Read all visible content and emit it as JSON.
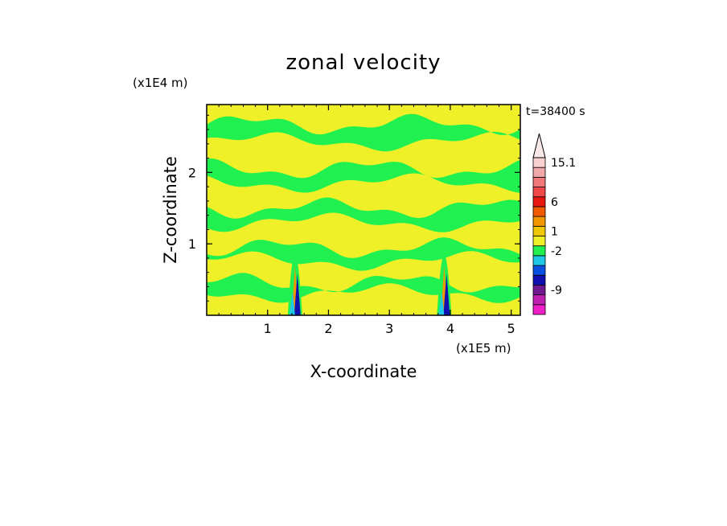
{
  "chart_data": {
    "type": "heatmap",
    "title": "zonal velocity",
    "xlabel": "X-coordinate",
    "ylabel": "Z-coordinate",
    "x_unit": "(x1E5 m)",
    "y_unit": "(x1E4 m)",
    "time_label": "t=38400 s",
    "xlim": [
      0,
      5.15
    ],
    "ylim": [
      0,
      2.95
    ],
    "x_ticks": [
      1,
      2,
      3,
      4,
      5
    ],
    "y_ticks": [
      1,
      2
    ],
    "colorbar": {
      "levels": [
        {
          "color": "#f020c8"
        },
        {
          "color": "#c020b0"
        },
        {
          "color": "#701890"
        },
        {
          "color": "#1010b0"
        },
        {
          "color": "#0a50e0"
        },
        {
          "color": "#20c8e8"
        },
        {
          "color": "#20f050"
        },
        {
          "color": "#f0f028"
        },
        {
          "color": "#f0c800"
        },
        {
          "color": "#f09600"
        },
        {
          "color": "#f05a00"
        },
        {
          "color": "#e81810"
        },
        {
          "color": "#f04848"
        },
        {
          "color": "#f07878"
        },
        {
          "color": "#f0a8a8"
        },
        {
          "color": "#f8d0d0"
        }
      ],
      "labels": [
        {
          "text": "15.1",
          "at_level": 15
        },
        {
          "text": "6",
          "at_level": 11
        },
        {
          "text": "1",
          "at_level": 8
        },
        {
          "text": "-2",
          "at_level": 6
        },
        {
          "text": "-9",
          "at_level": 2
        }
      ]
    },
    "field_colors": {
      "positive": "#f0f028",
      "negative": "#20f050"
    },
    "negative_bands": [
      {
        "z": 2.55,
        "half_width": 0.12
      },
      {
        "z": 1.95,
        "half_width": 0.1
      },
      {
        "z": 1.4,
        "half_width": 0.1
      },
      {
        "z": 0.85,
        "half_width": 0.09
      },
      {
        "z": 0.38,
        "half_width": 0.07
      }
    ],
    "mountains": [
      {
        "x": 1.45
      },
      {
        "x": 3.9
      }
    ]
  }
}
